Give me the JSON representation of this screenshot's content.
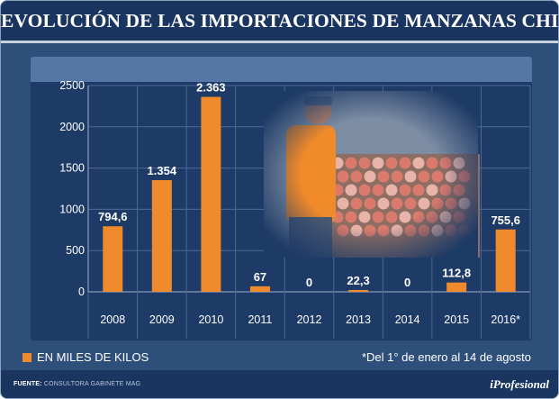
{
  "title": "EVOLUCIÓN DE LAS IMPORTACIONES DE MANZANAS CHILENAS",
  "colors": {
    "bar": "#ef8b2c",
    "background": "#2e4f7a",
    "plot": "#1e3a66",
    "text": "#ffffff"
  },
  "chart_data": {
    "type": "bar",
    "title": "EVOLUCIÓN DE LAS IMPORTACIONES DE MANZANAS CHILENAS",
    "categories": [
      "2008",
      "2009",
      "2010",
      "2011",
      "2012",
      "2013",
      "2014",
      "2015",
      "2016*"
    ],
    "values": [
      794.6,
      1354,
      2363,
      67,
      0,
      22.3,
      0,
      112.8,
      755.6
    ],
    "data_labels": [
      "794,6",
      "1.354",
      "2.363",
      "67",
      "0",
      "22,3",
      "0",
      "112,8",
      "755,6"
    ],
    "yticks": [
      "0",
      "500",
      "1000",
      "1500",
      "2000",
      "2500"
    ],
    "ytick_values": [
      0,
      500,
      1000,
      1500,
      2000,
      2500
    ],
    "ylim": [
      0,
      2500
    ],
    "xlabel": "",
    "ylabel": "",
    "legend": "EN MILES DE KILOS",
    "grid": true
  },
  "legend_label": "EN MILES DE KILOS",
  "footnote": "*Del 1° de enero al 14 de agosto",
  "source_label": "FUENTE:",
  "source_value": "CONSULTORA GABINETE MAG",
  "brand": "iProfesional",
  "photo_icon": "orchard-worker-photo"
}
